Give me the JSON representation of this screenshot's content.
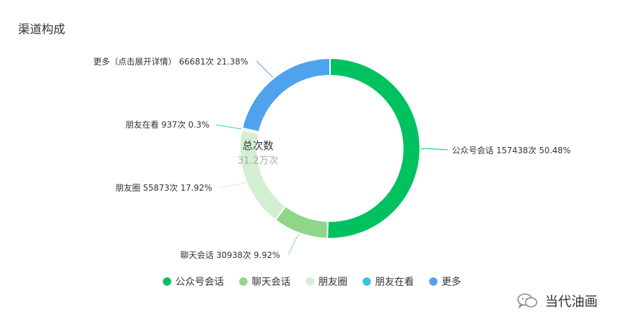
{
  "page": {
    "title": "渠道构成"
  },
  "chart_data": {
    "type": "pie",
    "title": "渠道构成",
    "center_label": "总次数",
    "center_value": "31.2万次",
    "legend_position": "bottom",
    "unit": "次",
    "slices": [
      {
        "name": "公众号会话",
        "value": 157438,
        "percent": "50.48%",
        "color": "#00c160",
        "label": "公众号会话 157438次 50.48%"
      },
      {
        "name": "聊天会话",
        "value": 30938,
        "percent": "9.92%",
        "color": "#8fd68a",
        "label": "聊天会话 30938次 9.92%"
      },
      {
        "name": "朋友圈",
        "value": 55873,
        "percent": "17.92%",
        "color": "#d3efd1",
        "label": "朋友圈 55873次 17.92%"
      },
      {
        "name": "朋友在看",
        "value": 937,
        "percent": "0.3%",
        "color": "#35c4e3",
        "label": "朋友在看 937次 0.3%"
      },
      {
        "name": "更多",
        "value": 66681,
        "percent": "21.38%",
        "color": "#4fa3ec",
        "label": "更多（点击展开详情） 66681次 21.38%"
      }
    ]
  },
  "watermark": {
    "icon": "wechat-icon",
    "text": "当代油画"
  }
}
